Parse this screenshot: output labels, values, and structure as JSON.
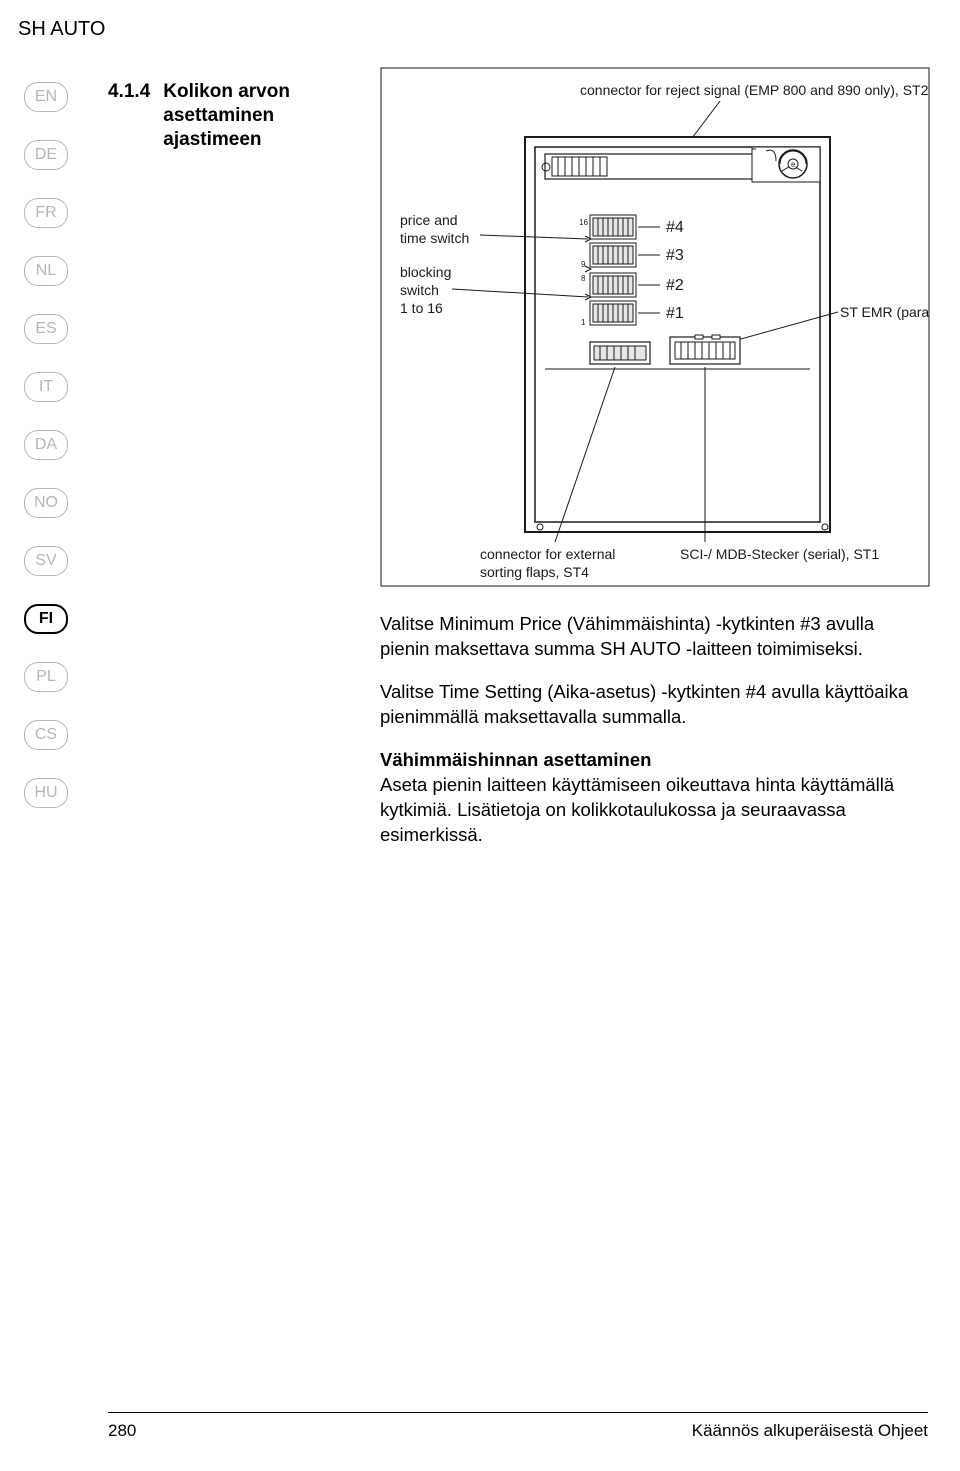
{
  "header": "SH AUTO",
  "languages": [
    {
      "code": "EN",
      "active": false
    },
    {
      "code": "DE",
      "active": false
    },
    {
      "code": "FR",
      "active": false
    },
    {
      "code": "NL",
      "active": false
    },
    {
      "code": "ES",
      "active": false
    },
    {
      "code": "IT",
      "active": false
    },
    {
      "code": "DA",
      "active": false
    },
    {
      "code": "NO",
      "active": false
    },
    {
      "code": "SV",
      "active": false
    },
    {
      "code": "FI",
      "active": true
    },
    {
      "code": "PL",
      "active": false
    },
    {
      "code": "CS",
      "active": false
    },
    {
      "code": "HU",
      "active": false
    }
  ],
  "section": {
    "number": "4.1.4",
    "title": "Kolikon arvon asettaminen ajastimeen"
  },
  "diagram": {
    "labels": {
      "top_right": "connector for reject signal (EMP 800 and 890 only), ST2",
      "left_1a": "price and",
      "left_1b": "time switch",
      "left_2a": "blocking",
      "left_2b": "switch",
      "left_2c": "1 to 16",
      "right_mid": "ST EMR (parallel)",
      "bottom_left_a": "connector for external",
      "bottom_left_b": "sorting flaps, ST4",
      "bottom_right": "SCI-/ MDB-Stecker (serial), ST1",
      "hash": [
        "#4",
        "#3",
        "#2",
        "#1"
      ],
      "dip_axis_top": "16",
      "dip_axis_mid": "9",
      "dip_axis_mid2": "8",
      "dip_axis_bot": "1"
    },
    "colors": {
      "stroke": "#1a1a1a",
      "light": "#9a9a9a",
      "fill_white": "#ffffff",
      "fill_gray": "#e6e6e6",
      "fill_dark": "#4a4a4a"
    }
  },
  "body": {
    "p1": "Valitse Minimum Price (Vähimmäishinta) -kytkinten #3 avulla pienin maksettava summa SH AUTO -laitteen toimimiseksi.",
    "p2": "Valitse Time Setting (Aika-asetus) -kytkinten #4 avulla käyttöaika pienimmällä maksettavalla summalla.",
    "p3_head": "Vähimmäishinnan asettaminen",
    "p3_body": "Aseta pienin laitteen käyttämiseen oikeuttava hinta käyttämällä kytkimiä. Lisätietoja on kolikkotaulukossa ja seuraavassa esimerkissä."
  },
  "footer": {
    "page": "280",
    "right": "Käännös alkuperäisestä Ohjeet"
  }
}
